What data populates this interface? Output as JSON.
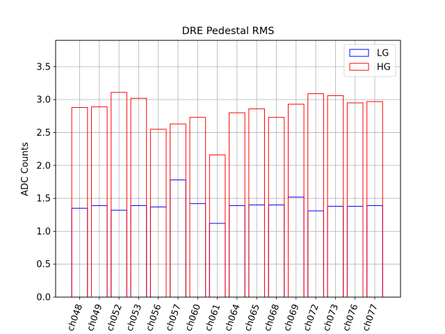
{
  "chart_data": {
    "type": "bar",
    "title": "DRE Pedestal RMS",
    "xlabel": "",
    "ylabel": "ADC Counts",
    "ylim": [
      0,
      3.9
    ],
    "yticks": [
      "0.0",
      "0.5",
      "1.0",
      "1.5",
      "2.0",
      "2.5",
      "3.0",
      "3.5"
    ],
    "grid": true,
    "legend_position": "top-right",
    "categories": [
      "ch048",
      "ch049",
      "ch052",
      "ch053",
      "ch056",
      "ch057",
      "ch060",
      "ch061",
      "ch064",
      "ch065",
      "ch068",
      "ch069",
      "ch072",
      "ch073",
      "ch076",
      "ch077"
    ],
    "series": [
      {
        "name": "LG",
        "color": "#0000ff",
        "style": "hollow",
        "values": [
          1.35,
          1.39,
          1.32,
          1.39,
          1.37,
          1.78,
          1.42,
          1.12,
          1.39,
          1.4,
          1.4,
          1.52,
          1.31,
          1.38,
          1.38,
          1.39
        ]
      },
      {
        "name": "HG",
        "color": "#ff0000",
        "style": "hollow",
        "values": [
          2.88,
          2.89,
          3.11,
          3.02,
          2.55,
          2.63,
          2.73,
          2.16,
          2.8,
          2.86,
          2.73,
          2.93,
          3.09,
          3.06,
          2.95,
          2.97
        ]
      }
    ]
  }
}
